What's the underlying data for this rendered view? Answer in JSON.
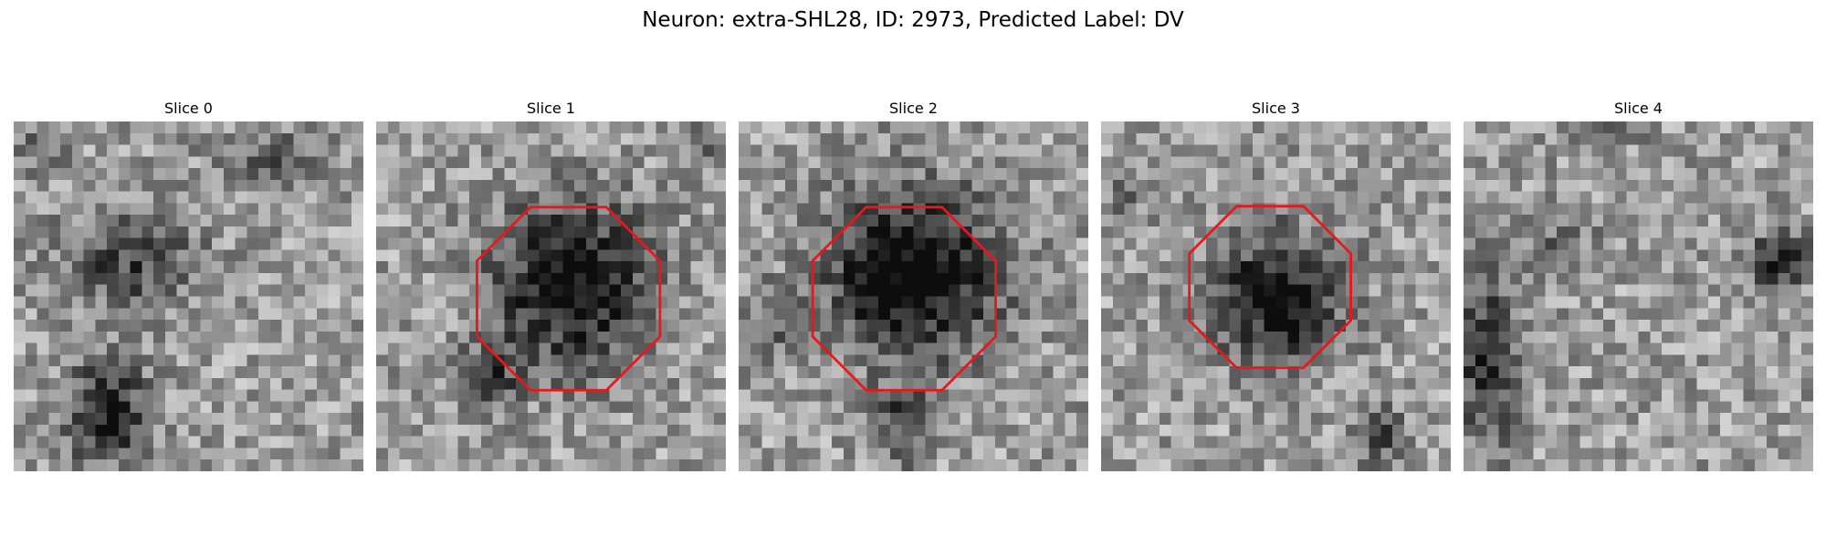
{
  "figure": {
    "title": "Neuron: extra-SHL28, ID: 2973, Predicted Label: DV"
  },
  "overlay": {
    "color": "#e8181a"
  },
  "slices": [
    {
      "title": "Slice 0",
      "has_contour": false
    },
    {
      "title": "Slice 1",
      "has_contour": true
    },
    {
      "title": "Slice 2",
      "has_contour": true
    },
    {
      "title": "Slice 3",
      "has_contour": true
    },
    {
      "title": "Slice 4",
      "has_contour": false
    }
  ]
}
